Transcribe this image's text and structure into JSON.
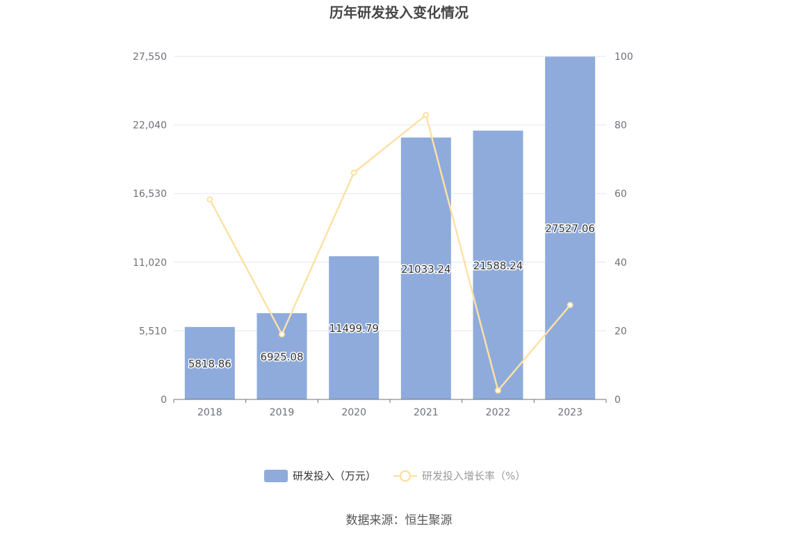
{
  "title": "历年研发投入变化情况",
  "source": "数据来源：恒生聚源",
  "colors": {
    "bar": "#8eabdb",
    "line": "#fde1a4",
    "grid": "#e0e6f1",
    "axis": "#6e7079",
    "legend_bar_text": "#333333",
    "legend_line_text": "#999999"
  },
  "chart_data": {
    "type": "bar",
    "categories": [
      "2018",
      "2019",
      "2020",
      "2021",
      "2022",
      "2023"
    ],
    "series": [
      {
        "name": "研发投入（万元）",
        "type": "bar",
        "axis": "left",
        "values": [
          5818.86,
          6925.08,
          11499.79,
          21033.24,
          21588.24,
          27527.06
        ],
        "labels": [
          "5818.86",
          "6925.08",
          "11499.79",
          "21033.24",
          "21588.24",
          "27527.06"
        ]
      },
      {
        "name": "研发投入增长率（%）",
        "type": "line",
        "axis": "right",
        "values": [
          58.3,
          19.0,
          66.1,
          82.9,
          2.6,
          27.5
        ]
      }
    ],
    "y_left": {
      "ticks": [
        "0",
        "5,510",
        "11,020",
        "16,530",
        "22,040",
        "27,550"
      ],
      "ylim": [
        0,
        27550
      ]
    },
    "y_right": {
      "ticks": [
        "0",
        "20",
        "40",
        "60",
        "80",
        "100"
      ],
      "ylim": [
        0,
        100
      ]
    },
    "grid": true,
    "legend_position": "bottom"
  }
}
